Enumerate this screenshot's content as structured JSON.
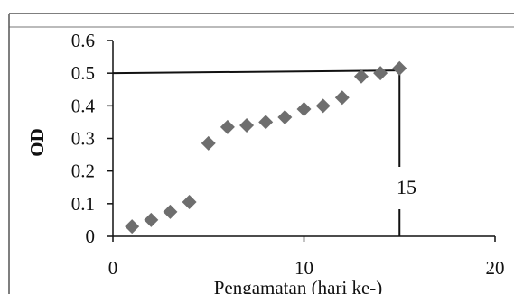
{
  "chart_data": {
    "type": "scatter",
    "title": "",
    "xlabel": "Pengamatan (hari ke-)",
    "ylabel": "OD",
    "xlim": [
      0,
      20
    ],
    "ylim": [
      0,
      0.6
    ],
    "x_ticks": [
      "0",
      "10",
      "20"
    ],
    "y_ticks": [
      "0",
      "0.1",
      "0.2",
      "0.3",
      "0.4",
      "0.5",
      "0.6"
    ],
    "grid": false,
    "legend": "none",
    "marker": "diamond",
    "series": [
      {
        "x": [
          1,
          2,
          3,
          4,
          5,
          6,
          7,
          8,
          9,
          10,
          11,
          12,
          13,
          14,
          15
        ],
        "y": [
          0.03,
          0.05,
          0.075,
          0.105,
          0.285,
          0.335,
          0.34,
          0.35,
          0.365,
          0.39,
          0.4,
          0.425,
          0.49,
          0.5,
          0.515
        ]
      }
    ],
    "reference_lines": {
      "horizontal_y": 0.5,
      "vertical_x": 15
    },
    "annotation": "15",
    "colors": {
      "marker": "#6e6e6e",
      "axis": "#111111",
      "frame": "#555555"
    }
  }
}
